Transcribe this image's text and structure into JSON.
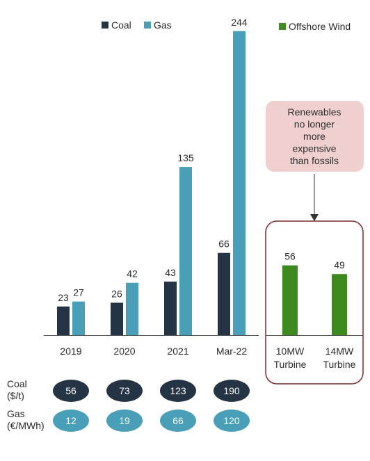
{
  "legend": {
    "left": [
      {
        "label": "Coal",
        "color": "#253444"
      },
      {
        "label": "Gas",
        "color": "#4a9fb8"
      }
    ],
    "right": [
      {
        "label": "Offshore Wind",
        "color": "#3d8a1e"
      }
    ]
  },
  "callout": {
    "lines": [
      "Renewables",
      "no longer",
      "more",
      "expensive",
      "than fossils"
    ],
    "fill": "#f0d0cf"
  },
  "box_color": "#7a2a2a",
  "chart_data": [
    {
      "type": "bar",
      "title": "",
      "xlabel": "",
      "ylabel": "",
      "categories": [
        "2019",
        "2020",
        "2021",
        "Mar-22"
      ],
      "series": [
        {
          "name": "Coal",
          "values": [
            23,
            26,
            43,
            66
          ],
          "color": "#253444"
        },
        {
          "name": "Gas",
          "values": [
            27,
            42,
            135,
            244
          ],
          "color": "#4a9fb8"
        }
      ],
      "ylim": [
        0,
        250
      ],
      "grid": false,
      "legend_position": "top"
    },
    {
      "type": "bar",
      "title": "",
      "xlabel": "",
      "ylabel": "",
      "categories": [
        "10MW Turbine",
        "14MW Turbine"
      ],
      "category_lines": [
        [
          "10MW",
          "Turbine"
        ],
        [
          "14MW",
          "Turbine"
        ]
      ],
      "series": [
        {
          "name": "Offshore Wind",
          "values": [
            56,
            49
          ],
          "color": "#3d8a1e"
        }
      ],
      "ylim": [
        0,
        250
      ],
      "grid": false,
      "legend_position": "top-right"
    }
  ],
  "price_table": {
    "rows": [
      {
        "label_lines": [
          "Coal",
          "($/t)"
        ],
        "values": [
          "56",
          "73",
          "123",
          "190"
        ],
        "fill": "#253444",
        "text_color": "#ffffff"
      },
      {
        "label_lines": [
          "Gas",
          "(€/MWh)"
        ],
        "values": [
          "12",
          "19",
          "66",
          "120"
        ],
        "fill": "#4a9fb8",
        "text_color": "#ffffff"
      }
    ]
  }
}
